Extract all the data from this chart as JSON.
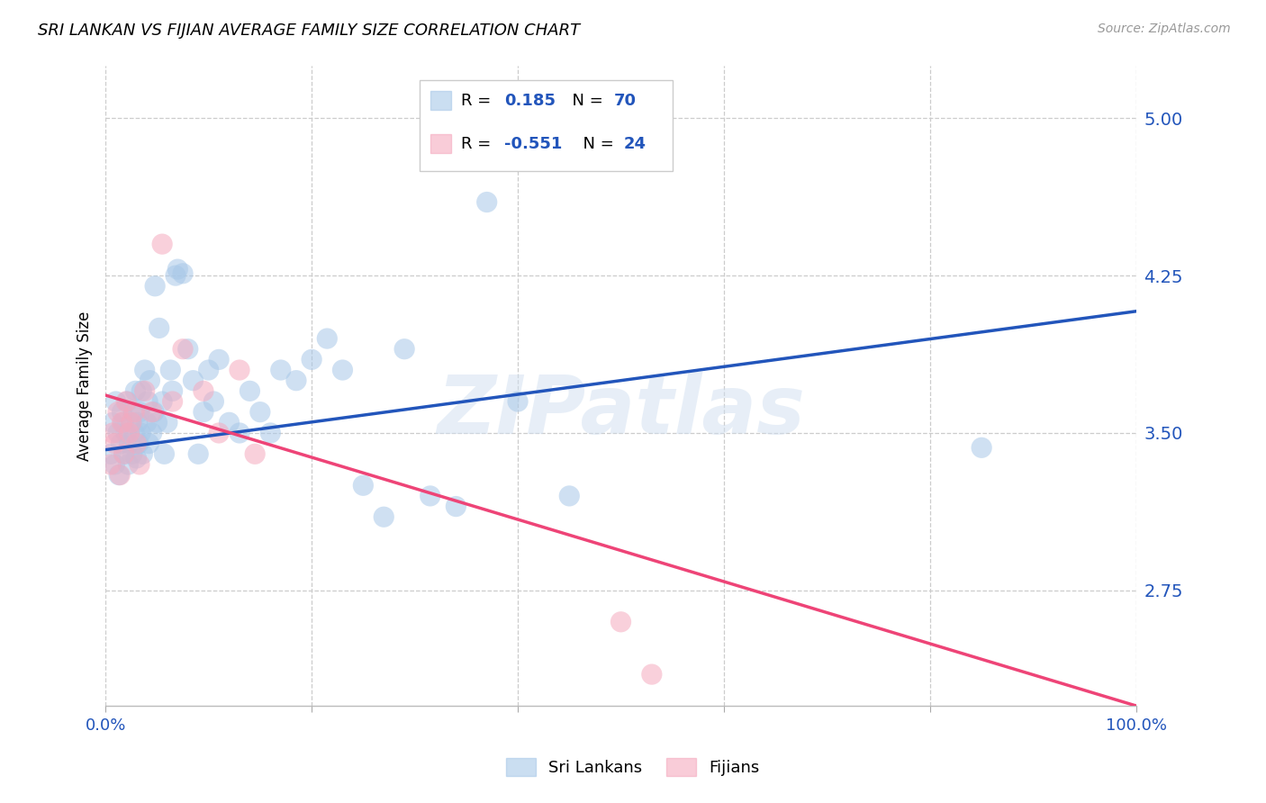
{
  "title": "SRI LANKAN VS FIJIAN AVERAGE FAMILY SIZE CORRELATION CHART",
  "source": "Source: ZipAtlas.com",
  "ylabel": "Average Family Size",
  "yticks": [
    2.75,
    3.5,
    4.25,
    5.0
  ],
  "xlim": [
    0.0,
    1.0
  ],
  "ylim": [
    2.2,
    5.25
  ],
  "watermark": "ZIPatlas",
  "sri_lankan_R": "0.185",
  "sri_lankan_N": "70",
  "fijian_R": "-0.551",
  "fijian_N": "24",
  "blue_color": "#a8c8e8",
  "pink_color": "#f5aabf",
  "blue_line_color": "#2255bb",
  "pink_line_color": "#ee4477",
  "legend_text_color": "#2255bb",
  "axis_label_color": "#2255bb",
  "sri_lankans_x": [
    0.005,
    0.007,
    0.009,
    0.01,
    0.012,
    0.013,
    0.015,
    0.016,
    0.017,
    0.018,
    0.02,
    0.021,
    0.022,
    0.023,
    0.025,
    0.026,
    0.027,
    0.028,
    0.029,
    0.03,
    0.031,
    0.032,
    0.033,
    0.034,
    0.035,
    0.036,
    0.038,
    0.04,
    0.041,
    0.042,
    0.043,
    0.045,
    0.047,
    0.048,
    0.05,
    0.052,
    0.055,
    0.057,
    0.06,
    0.063,
    0.065,
    0.068,
    0.07,
    0.075,
    0.08,
    0.085,
    0.09,
    0.095,
    0.1,
    0.105,
    0.11,
    0.12,
    0.13,
    0.14,
    0.15,
    0.16,
    0.17,
    0.185,
    0.2,
    0.215,
    0.23,
    0.25,
    0.27,
    0.29,
    0.315,
    0.34,
    0.37,
    0.4,
    0.45,
    0.85
  ],
  "sri_lankans_y": [
    3.4,
    3.55,
    3.35,
    3.65,
    3.5,
    3.3,
    3.45,
    3.6,
    3.55,
    3.4,
    3.5,
    3.65,
    3.35,
    3.45,
    3.55,
    3.4,
    3.6,
    3.5,
    3.7,
    3.38,
    3.55,
    3.45,
    3.6,
    3.5,
    3.7,
    3.4,
    3.8,
    3.55,
    3.65,
    3.45,
    3.75,
    3.5,
    3.6,
    4.2,
    3.55,
    4.0,
    3.65,
    3.4,
    3.55,
    3.8,
    3.7,
    4.25,
    4.28,
    4.26,
    3.9,
    3.75,
    3.4,
    3.6,
    3.8,
    3.65,
    3.85,
    3.55,
    3.5,
    3.7,
    3.6,
    3.5,
    3.8,
    3.75,
    3.85,
    3.95,
    3.8,
    3.25,
    3.1,
    3.9,
    3.2,
    3.15,
    4.6,
    3.65,
    3.2,
    3.43
  ],
  "fijians_x": [
    0.005,
    0.007,
    0.009,
    0.012,
    0.014,
    0.016,
    0.018,
    0.02,
    0.023,
    0.025,
    0.028,
    0.03,
    0.033,
    0.038,
    0.045,
    0.055,
    0.065,
    0.075,
    0.095,
    0.11,
    0.13,
    0.145,
    0.5,
    0.53
  ],
  "fijians_y": [
    3.35,
    3.5,
    3.45,
    3.6,
    3.3,
    3.55,
    3.4,
    3.65,
    3.5,
    3.55,
    3.6,
    3.45,
    3.35,
    3.7,
    3.6,
    4.4,
    3.65,
    3.9,
    3.7,
    3.5,
    3.8,
    3.4,
    2.6,
    2.35
  ],
  "blue_line_x0": 0.0,
  "blue_line_x1": 1.0,
  "blue_line_y0": 3.42,
  "blue_line_y1": 4.08,
  "pink_line_x0": 0.0,
  "pink_line_x1": 1.0,
  "pink_line_y0": 3.68,
  "pink_line_y1": 2.2
}
